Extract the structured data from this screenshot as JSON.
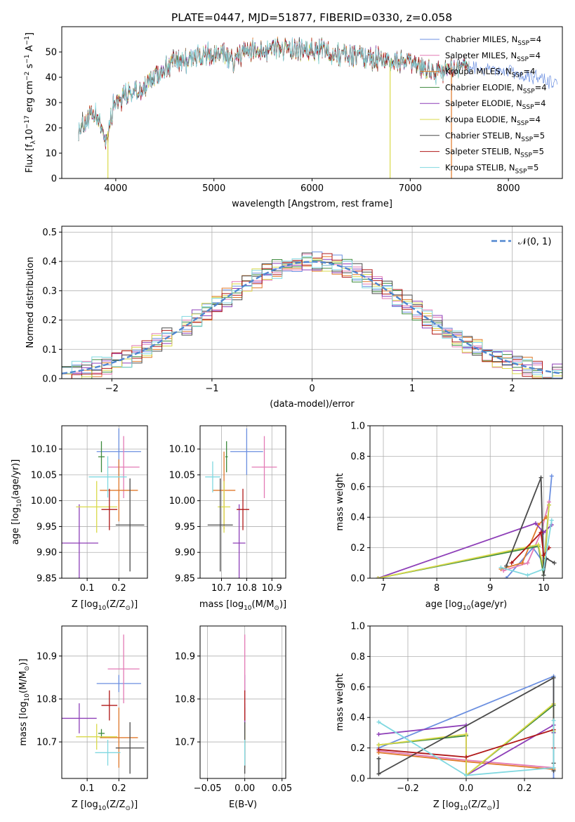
{
  "figure_title": "PLATE=0447, MJD=51877, FIBERID=0330, z=0.058",
  "colors": {
    "Chabrier MILES": "#6b8fe0",
    "Salpeter MILES": "#e37ab5",
    "Kroupa MILES": "#e0792a",
    "Chabrier ELODIE": "#3d8a3d",
    "Salpeter ELODIE": "#8e3fb8",
    "Kroupa ELODIE": "#d9d94a",
    "Chabrier STELIB": "#4a4a4a",
    "Salpeter STELIB": "#b01818",
    "Kroupa STELIB": "#80d8e0"
  },
  "chart_data": [
    {
      "id": "spectrum",
      "type": "line",
      "xlabel": "wavelength [Angstrom, rest frame]",
      "ylabel": "Flux [f",
      "xlim": [
        3450,
        8550
      ],
      "ylim": [
        0,
        60
      ],
      "xticks": [
        4000,
        5000,
        6000,
        7000,
        8000
      ],
      "yticks": [
        0,
        10,
        20,
        30,
        40,
        50
      ],
      "legend": "top-right",
      "legend_entries": [
        {
          "model": "Chabrier MILES",
          "n": "4"
        },
        {
          "model": "Salpeter MILES",
          "n": "4"
        },
        {
          "model": "Kroupa MILES",
          "n": "4"
        },
        {
          "model": "Chabrier ELODIE",
          "n": "4"
        },
        {
          "model": "Salpeter ELODIE",
          "n": "4"
        },
        {
          "model": "Kroupa ELODIE",
          "n": "4"
        },
        {
          "model": "Chabrier STELIB",
          "n": "5"
        },
        {
          "model": "Salpeter STELIB",
          "n": "5"
        },
        {
          "model": "Kroupa STELIB",
          "n": "5"
        }
      ],
      "continuum": [
        [
          3620,
          20
        ],
        [
          3700,
          23
        ],
        [
          3800,
          25
        ],
        [
          3900,
          15
        ],
        [
          3960,
          26
        ],
        [
          4000,
          31
        ],
        [
          4100,
          33
        ],
        [
          4200,
          34
        ],
        [
          4300,
          36
        ],
        [
          4400,
          40
        ],
        [
          4500,
          44
        ],
        [
          4600,
          46
        ],
        [
          4700,
          47
        ],
        [
          4800,
          48
        ],
        [
          4900,
          48
        ],
        [
          5000,
          49
        ],
        [
          5100,
          49
        ],
        [
          5200,
          46
        ],
        [
          5300,
          50
        ],
        [
          5500,
          51
        ],
        [
          5700,
          52
        ],
        [
          5900,
          50
        ],
        [
          6100,
          51
        ],
        [
          6300,
          49
        ],
        [
          6500,
          49
        ],
        [
          6700,
          47
        ],
        [
          6900,
          46
        ],
        [
          7100,
          44
        ],
        [
          7300,
          42
        ],
        [
          7500,
          45
        ],
        [
          7700,
          43
        ],
        [
          7900,
          43
        ],
        [
          8100,
          41
        ],
        [
          8300,
          40
        ],
        [
          8500,
          38
        ]
      ],
      "spikes": [
        {
          "x": 3920,
          "y": 0
        },
        {
          "x": 6795,
          "y": 0
        },
        {
          "x": 7420,
          "y": 0
        }
      ]
    },
    {
      "id": "residual-histogram",
      "type": "bar",
      "xlabel": "(data-model)/error",
      "ylabel": "Normed distribution",
      "xlim": [
        -2.5,
        2.5
      ],
      "ylim": [
        0,
        0.52
      ],
      "xticks": [
        -2,
        -1,
        0,
        1,
        2
      ],
      "yticks": [
        0.0,
        0.1,
        0.2,
        0.3,
        0.4,
        0.5
      ],
      "legend": "top-right",
      "legend_label": "𝒩(0, 1)",
      "bin_width": 0.1,
      "reference_curve": "standard normal"
    },
    {
      "id": "age-vs-z",
      "type": "scatter",
      "xlabel": "Z [log",
      "ylabel": "age  [log",
      "xlim": [
        0.02,
        0.29
      ],
      "ylim": [
        9.85,
        10.145
      ],
      "xticks": [
        0.1,
        0.2
      ],
      "yticks": [
        9.85,
        9.9,
        9.95,
        10.0,
        10.05,
        10.1
      ],
      "points": [
        {
          "model": "Chabrier MILES",
          "x": 0.2,
          "y": 10.095,
          "xerr": 0.07,
          "yerr": 0.045
        },
        {
          "model": "Salpeter MILES",
          "x": 0.215,
          "y": 10.065,
          "xerr": 0.05,
          "yerr": 0.06
        },
        {
          "model": "Kroupa MILES",
          "x": 0.2,
          "y": 10.02,
          "xerr": 0.06,
          "yerr": 0.06
        },
        {
          "model": "Chabrier ELODIE",
          "x": 0.145,
          "y": 10.085,
          "xerr": 0.01,
          "yerr": 0.03
        },
        {
          "model": "Salpeter ELODIE",
          "x": 0.075,
          "y": 9.918,
          "xerr": 0.06,
          "yerr": 0.075
        },
        {
          "model": "Kroupa ELODIE",
          "x": 0.13,
          "y": 9.988,
          "xerr": 0.065,
          "yerr": 0.05
        },
        {
          "model": "Chabrier STELIB",
          "x": 0.235,
          "y": 9.953,
          "xerr": 0.045,
          "yerr": 0.09
        },
        {
          "model": "Salpeter STELIB",
          "x": 0.17,
          "y": 9.983,
          "xerr": 0.025,
          "yerr": 0.04
        },
        {
          "model": "Kroupa STELIB",
          "x": 0.165,
          "y": 10.046,
          "xerr": 0.06,
          "yerr": 0.04
        }
      ]
    },
    {
      "id": "age-vs-mass",
      "type": "scatter",
      "xlabel": "mass [log",
      "ylabel": "",
      "xlim": [
        10.615,
        10.955
      ],
      "ylim": [
        9.85,
        10.145
      ],
      "xticks": [
        10.7,
        10.8,
        10.9
      ],
      "yticks": [
        9.85,
        9.9,
        9.95,
        10.0,
        10.05,
        10.1
      ],
      "points": [
        {
          "model": "Chabrier MILES",
          "x": 10.8,
          "y": 10.095,
          "xerr": 0.065,
          "yerr": 0.045
        },
        {
          "model": "Salpeter MILES",
          "x": 10.87,
          "y": 10.065,
          "xerr": 0.05,
          "yerr": 0.06
        },
        {
          "model": "Kroupa MILES",
          "x": 10.71,
          "y": 10.02,
          "xerr": 0.045,
          "yerr": 0.075
        },
        {
          "model": "Chabrier ELODIE",
          "x": 10.72,
          "y": 10.085,
          "xerr": 0.005,
          "yerr": 0.03
        },
        {
          "model": "Salpeter ELODIE",
          "x": 10.77,
          "y": 9.918,
          "xerr": 0.025,
          "yerr": 0.075
        },
        {
          "model": "Kroupa ELODIE",
          "x": 10.71,
          "y": 9.988,
          "xerr": 0.025,
          "yerr": 0.05
        },
        {
          "model": "Chabrier STELIB",
          "x": 10.695,
          "y": 9.953,
          "xerr": 0.05,
          "yerr": 0.09
        },
        {
          "model": "Salpeter STELIB",
          "x": 10.785,
          "y": 9.983,
          "xerr": 0.025,
          "yerr": 0.04
        },
        {
          "model": "Kroupa STELIB",
          "x": 10.665,
          "y": 10.046,
          "xerr": 0.03,
          "yerr": 0.03
        }
      ]
    },
    {
      "id": "weight-vs-age",
      "type": "line",
      "xlabel": "age  [log",
      "ylabel": "mass weight",
      "xlim": [
        6.75,
        10.35
      ],
      "ylim": [
        0,
        1
      ],
      "xticks": [
        7,
        8,
        9,
        10
      ],
      "yticks": [
        0.0,
        0.2,
        0.4,
        0.6,
        0.8,
        1.0
      ],
      "series": [
        {
          "model": "Chabrier MILES",
          "x": [
            9.3,
            9.8,
            10.0,
            10.15
          ],
          "y": [
            0.0,
            0.2,
            0.1,
            0.67
          ]
        },
        {
          "model": "Salpeter MILES",
          "x": [
            9.25,
            9.7,
            9.95,
            10.1
          ],
          "y": [
            0.05,
            0.1,
            0.3,
            0.5
          ]
        },
        {
          "model": "Kroupa MILES",
          "x": [
            9.2,
            9.6,
            9.9,
            10.05
          ],
          "y": [
            0.06,
            0.1,
            0.35,
            0.4
          ]
        },
        {
          "model": "Chabrier ELODIE",
          "x": [
            6.9,
            9.9,
            10.0,
            10.1
          ],
          "y": [
            0.0,
            0.21,
            0.02,
            0.48
          ]
        },
        {
          "model": "Salpeter ELODIE",
          "x": [
            6.9,
            9.85,
            10.0,
            10.15
          ],
          "y": [
            0.0,
            0.36,
            0.3,
            0.35
          ]
        },
        {
          "model": "Kroupa ELODIE",
          "x": [
            6.9,
            9.9,
            10.0,
            10.1
          ],
          "y": [
            0.0,
            0.22,
            0.06,
            0.48
          ]
        },
        {
          "model": "Chabrier STELIB",
          "x": [
            9.3,
            9.95,
            10.0,
            10.05,
            10.2
          ],
          "y": [
            0.08,
            0.66,
            0.02,
            0.13,
            0.1
          ]
        },
        {
          "model": "Salpeter STELIB",
          "x": [
            9.4,
            9.95,
            10.0,
            10.1
          ],
          "y": [
            0.1,
            0.3,
            0.15,
            0.2
          ]
        },
        {
          "model": "Kroupa STELIB",
          "x": [
            9.2,
            9.7,
            10.0,
            10.15
          ],
          "y": [
            0.07,
            0.02,
            0.06,
            0.38
          ]
        }
      ]
    },
    {
      "id": "mass-vs-z",
      "type": "scatter",
      "xlabel": "Z [log",
      "ylabel": "mass [log",
      "xlim": [
        0.02,
        0.29
      ],
      "ylim": [
        10.615,
        10.97
      ],
      "xticks": [
        0.1,
        0.2
      ],
      "yticks": [
        10.7,
        10.8,
        10.9
      ],
      "points": [
        {
          "model": "Chabrier MILES",
          "x": 0.2,
          "y": 10.836,
          "xerr": 0.07,
          "yerr": 0.02
        },
        {
          "model": "Salpeter MILES",
          "x": 0.215,
          "y": 10.87,
          "xerr": 0.05,
          "yerr": 0.08
        },
        {
          "model": "Kroupa MILES",
          "x": 0.2,
          "y": 10.71,
          "xerr": 0.06,
          "yerr": 0.07
        },
        {
          "model": "Chabrier ELODIE",
          "x": 0.145,
          "y": 10.72,
          "xerr": 0.01,
          "yerr": 0.01
        },
        {
          "model": "Salpeter ELODIE",
          "x": 0.075,
          "y": 10.755,
          "xerr": 0.055,
          "yerr": 0.035
        },
        {
          "model": "Kroupa ELODIE",
          "x": 0.13,
          "y": 10.712,
          "xerr": 0.065,
          "yerr": 0.03
        },
        {
          "model": "Chabrier STELIB",
          "x": 0.235,
          "y": 10.686,
          "xerr": 0.045,
          "yerr": 0.06
        },
        {
          "model": "Salpeter STELIB",
          "x": 0.17,
          "y": 10.785,
          "xerr": 0.025,
          "yerr": 0.035
        },
        {
          "model": "Kroupa STELIB",
          "x": 0.165,
          "y": 10.675,
          "xerr": 0.04,
          "yerr": 0.03
        }
      ]
    },
    {
      "id": "mass-vs-ebv",
      "type": "scatter",
      "xlabel": "E(B-V)",
      "ylabel": "",
      "xlim": [
        -0.06,
        0.055
      ],
      "ylim": [
        10.615,
        10.97
      ],
      "xticks": [
        -0.05,
        0.0,
        0.05
      ],
      "yticks": [
        10.7,
        10.8,
        10.9
      ],
      "points": [
        {
          "model": "Chabrier MILES",
          "x": 0.0,
          "y": 10.836,
          "xerr": 0,
          "yerr": 0.02
        },
        {
          "model": "Salpeter MILES",
          "x": 0.0,
          "y": 10.87,
          "xerr": 0,
          "yerr": 0.08
        },
        {
          "model": "Kroupa MILES",
          "x": 0.0,
          "y": 10.71,
          "xerr": 0,
          "yerr": 0.07
        },
        {
          "model": "Chabrier ELODIE",
          "x": 0.0,
          "y": 10.72,
          "xerr": 0,
          "yerr": 0.01
        },
        {
          "model": "Salpeter ELODIE",
          "x": 0.0,
          "y": 10.755,
          "xerr": 0,
          "yerr": 0.035
        },
        {
          "model": "Kroupa ELODIE",
          "x": 0.0,
          "y": 10.712,
          "xerr": 0,
          "yerr": 0.03
        },
        {
          "model": "Chabrier STELIB",
          "x": 0.0,
          "y": 10.686,
          "xerr": 0,
          "yerr": 0.06
        },
        {
          "model": "Salpeter STELIB",
          "x": 0.0,
          "y": 10.785,
          "xerr": 0,
          "yerr": 0.035
        },
        {
          "model": "Kroupa STELIB",
          "x": 0.0,
          "y": 10.675,
          "xerr": 0,
          "yerr": 0.03
        }
      ]
    },
    {
      "id": "weight-vs-z",
      "type": "line",
      "xlabel": "Z [log",
      "ylabel": "mass weight",
      "xlim": [
        -0.33,
        0.33
      ],
      "ylim": [
        0,
        1
      ],
      "xticks": [
        -0.2,
        0.0,
        0.2
      ],
      "yticks": [
        0.0,
        0.2,
        0.4,
        0.6,
        0.8,
        1.0
      ],
      "series": [
        {
          "model": "Chabrier MILES",
          "x": [
            -0.3,
            0.3,
            0.3
          ],
          "y": [
            0.2,
            0.67,
            0.0
          ]
        },
        {
          "model": "Salpeter MILES",
          "x": [
            -0.3,
            0.0,
            0.3
          ],
          "y": [
            0.18,
            0.12,
            0.07
          ]
        },
        {
          "model": "Kroupa MILES",
          "x": [
            -0.3,
            0.0,
            0.3
          ],
          "y": [
            0.17,
            0.11,
            0.06
          ]
        },
        {
          "model": "Chabrier ELODIE",
          "x": [
            -0.3,
            0.0,
            0.0,
            0.3,
            0.3
          ],
          "y": [
            0.22,
            0.28,
            0.02,
            0.48,
            0.3
          ]
        },
        {
          "model": "Salpeter ELODIE",
          "x": [
            -0.3,
            0.0,
            0.0,
            0.3,
            0.3
          ],
          "y": [
            0.29,
            0.35,
            0.02,
            0.35,
            0.3
          ]
        },
        {
          "model": "Kroupa ELODIE",
          "x": [
            -0.3,
            0.0,
            0.0,
            0.3,
            0.3
          ],
          "y": [
            0.22,
            0.29,
            0.02,
            0.49,
            0.31
          ]
        },
        {
          "model": "Chabrier STELIB",
          "x": [
            -0.3,
            -0.3,
            0.3,
            0.3,
            0.3
          ],
          "y": [
            0.13,
            0.03,
            0.66,
            0.1,
            0.05
          ]
        },
        {
          "model": "Salpeter STELIB",
          "x": [
            -0.3,
            0.0,
            0.3,
            0.3
          ],
          "y": [
            0.19,
            0.14,
            0.32,
            0.2
          ]
        },
        {
          "model": "Kroupa STELIB",
          "x": [
            -0.3,
            0.0,
            0.3,
            0.3
          ],
          "y": [
            0.37,
            0.02,
            0.07,
            0.38
          ]
        }
      ]
    }
  ]
}
